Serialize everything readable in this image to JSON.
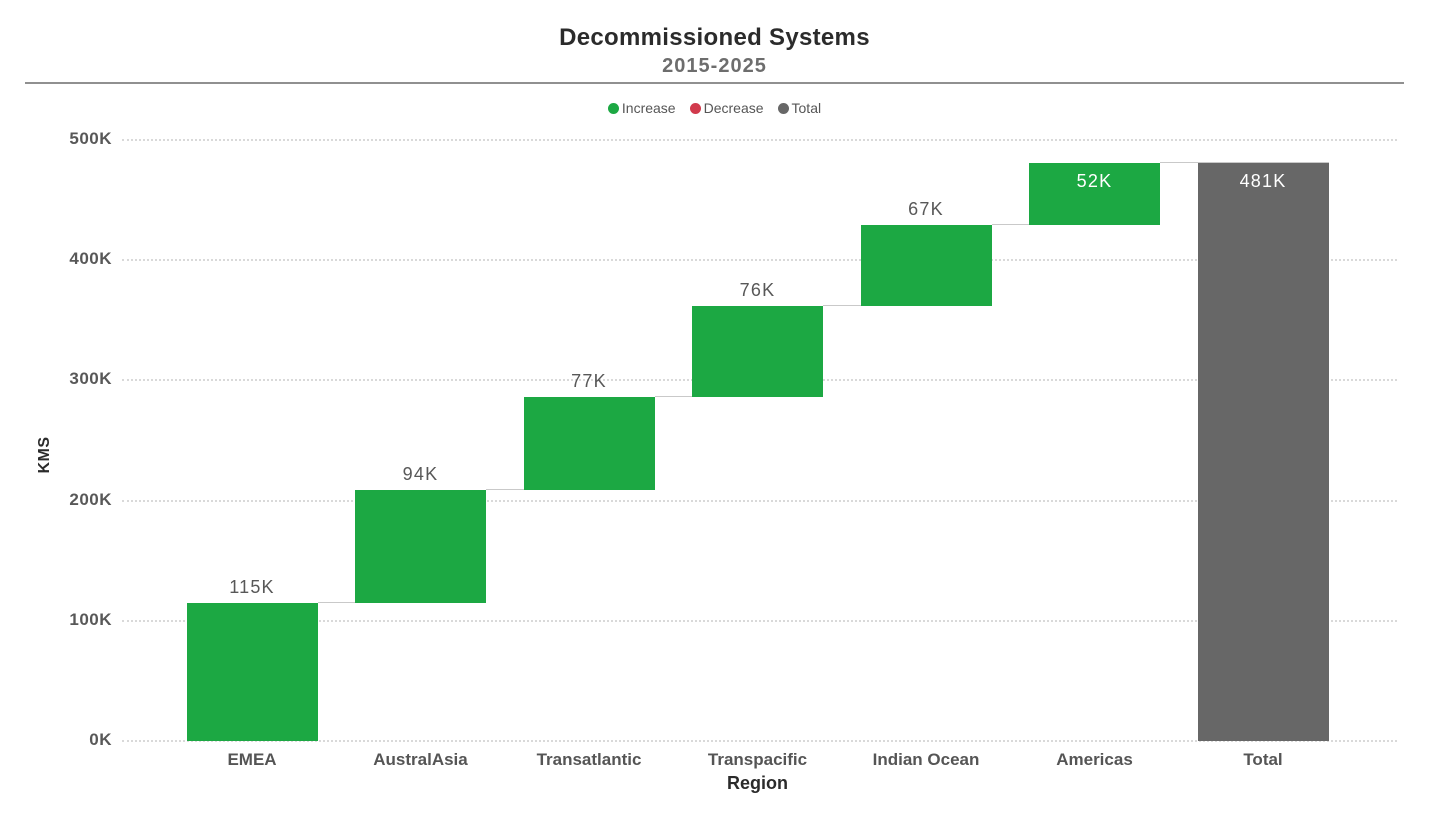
{
  "header": {
    "title": "Decommissioned Systems",
    "subtitle": "2015-2025"
  },
  "legend": [
    {
      "label": "Increase",
      "color": "#1CA843"
    },
    {
      "label": "Decrease",
      "color": "#D13A4C"
    },
    {
      "label": "Total",
      "color": "#676767"
    }
  ],
  "chart_data": {
    "type": "bar",
    "subtype": "waterfall",
    "title": "Decommissioned Systems",
    "subtitle": "2015-2025",
    "xlabel": "Region",
    "ylabel": "KMS",
    "ylim": [
      0,
      500000
    ],
    "y_tick_labels": [
      "0K",
      "100K",
      "200K",
      "300K",
      "400K",
      "500K"
    ],
    "grid": "horizontal dotted",
    "legend_position": "top center",
    "categories": [
      "EMEA",
      "AustralAsia",
      "Transatlantic",
      "Transpacific",
      "Indian Ocean",
      "Americas",
      "Total"
    ],
    "bars": [
      {
        "category": "EMEA",
        "value": 115000,
        "label": "115K",
        "kind": "increase",
        "label_placement": "above"
      },
      {
        "category": "AustralAsia",
        "value": 94000,
        "label": "94K",
        "kind": "increase",
        "label_placement": "above"
      },
      {
        "category": "Transatlantic",
        "value": 77000,
        "label": "77K",
        "kind": "increase",
        "label_placement": "above"
      },
      {
        "category": "Transpacific",
        "value": 76000,
        "label": "76K",
        "kind": "increase",
        "label_placement": "above"
      },
      {
        "category": "Indian Ocean",
        "value": 67000,
        "label": "67K",
        "kind": "increase",
        "label_placement": "above"
      },
      {
        "category": "Americas",
        "value": 52000,
        "label": "52K",
        "kind": "increase",
        "label_placement": "inside"
      },
      {
        "category": "Total",
        "value": 481000,
        "label": "481K",
        "kind": "total",
        "label_placement": "inside"
      }
    ],
    "colors": {
      "increase": "#1CA843",
      "decrease": "#D13A4C",
      "total": "#676767",
      "gridline": "#d9d9d9",
      "connector": "#c9c9c9",
      "value_label": "#585858",
      "value_label_inside": "#ffffff"
    }
  }
}
